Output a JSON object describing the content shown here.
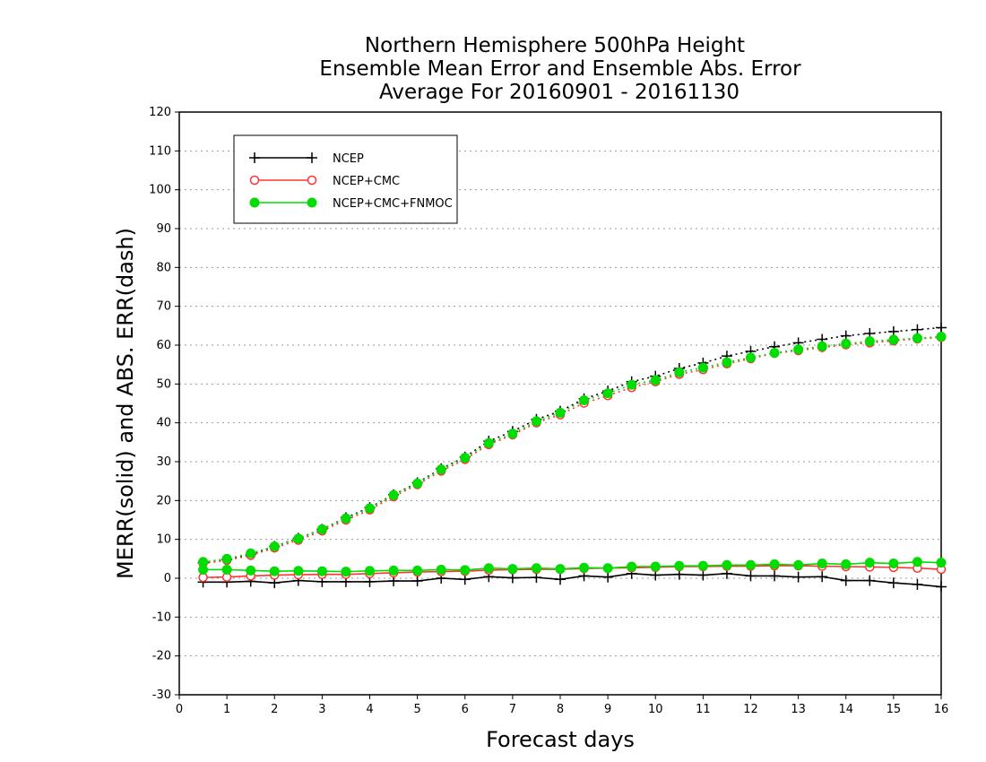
{
  "chart_data": {
    "type": "line",
    "title": [
      "Northern Hemisphere 500hPa Height",
      "Ensemble Mean Error and Ensemble Abs. Error",
      "Average For 20160901 - 20161130"
    ],
    "xlabel": "Forecast days",
    "ylabel": "MERR(solid) and ABS. ERR(dash)",
    "xlim": [
      0,
      16
    ],
    "ylim": [
      -30,
      120
    ],
    "xticks": [
      0,
      1,
      2,
      3,
      4,
      5,
      6,
      7,
      8,
      9,
      10,
      11,
      12,
      13,
      14,
      15,
      16
    ],
    "yticks": [
      -30,
      -20,
      -10,
      0,
      10,
      20,
      30,
      40,
      50,
      60,
      70,
      80,
      90,
      100,
      110,
      120
    ],
    "grid": "horizontal dotted",
    "legend": "top-left",
    "x": [
      0.5,
      1,
      1.5,
      2,
      2.5,
      3,
      3.5,
      4,
      4.5,
      5,
      5.5,
      6,
      6.5,
      7,
      7.5,
      8,
      8.5,
      9,
      9.5,
      10,
      10.5,
      11,
      11.5,
      12,
      12.5,
      13,
      13.5,
      14,
      14.5,
      15,
      15.5,
      16
    ],
    "series": [
      {
        "name": "NCEP",
        "color": "#000000",
        "marker": "plus",
        "merr": [
          -1,
          -1,
          -0.8,
          -1.2,
          -0.6,
          -0.9,
          -0.9,
          -0.9,
          -0.7,
          -0.7,
          0,
          -0.3,
          0.4,
          0.1,
          0.2,
          -0.3,
          0.6,
          0.3,
          1.2,
          0.8,
          1,
          0.8,
          1.2,
          0.6,
          0.6,
          0.3,
          0.4,
          -0.6,
          -0.6,
          -1.2,
          -1.6,
          -2.2
        ],
        "abserr": [
          4,
          4.8,
          6.1,
          8.2,
          10.3,
          12.6,
          15.6,
          18.2,
          21.5,
          24.6,
          28.2,
          31.2,
          35.3,
          37.8,
          40.9,
          43,
          46.2,
          48.2,
          50.6,
          52,
          54,
          55.4,
          57.2,
          58.4,
          59.6,
          60.6,
          61.5,
          62.4,
          63,
          63.5,
          64,
          64.5
        ]
      },
      {
        "name": "NCEP+CMC",
        "color": "#ff3333",
        "marker": "open-circle",
        "merr": [
          0.2,
          0.3,
          0.6,
          0.8,
          0.9,
          1,
          1,
          1.2,
          1.4,
          1.6,
          1.7,
          1.8,
          2.1,
          2.2,
          2.3,
          2.3,
          2.5,
          2.6,
          2.7,
          2.8,
          3,
          3,
          3.1,
          3.1,
          3.2,
          3.2,
          3.1,
          3,
          2.9,
          2.8,
          2.6,
          2.3
        ],
        "abserr": [
          3.8,
          4.6,
          5.9,
          7.8,
          9.8,
          12.2,
          15,
          17.6,
          21,
          24.1,
          27.6,
          30.6,
          34.4,
          36.9,
          40,
          42.1,
          45.1,
          47,
          49.1,
          50.6,
          52.5,
          53.7,
          55.2,
          56.5,
          57.9,
          58.6,
          59.4,
          60.1,
          60.6,
          61.1,
          61.6,
          62
        ]
      },
      {
        "name": "NCEP+CMC+FNMOC",
        "color": "#00dd00",
        "marker": "filled-circle",
        "merr": [
          2.2,
          2.2,
          2,
          1.8,
          1.9,
          1.8,
          1.7,
          1.9,
          2,
          2,
          2.2,
          2.1,
          2.6,
          2.4,
          2.6,
          2.4,
          2.7,
          2.6,
          3,
          3,
          3.2,
          3.2,
          3.4,
          3.4,
          3.6,
          3.4,
          3.8,
          3.6,
          4,
          3.8,
          4.2,
          4
        ],
        "abserr": [
          4.2,
          5,
          6.4,
          8.2,
          10.2,
          12.6,
          15.4,
          18,
          21.4,
          24.4,
          28,
          31,
          34.8,
          37.2,
          40.4,
          42.6,
          45.8,
          47.6,
          49.8,
          51,
          53,
          54.2,
          55.6,
          56.8,
          58,
          58.9,
          59.7,
          60.4,
          61,
          61.4,
          61.8,
          62.2
        ]
      }
    ]
  }
}
